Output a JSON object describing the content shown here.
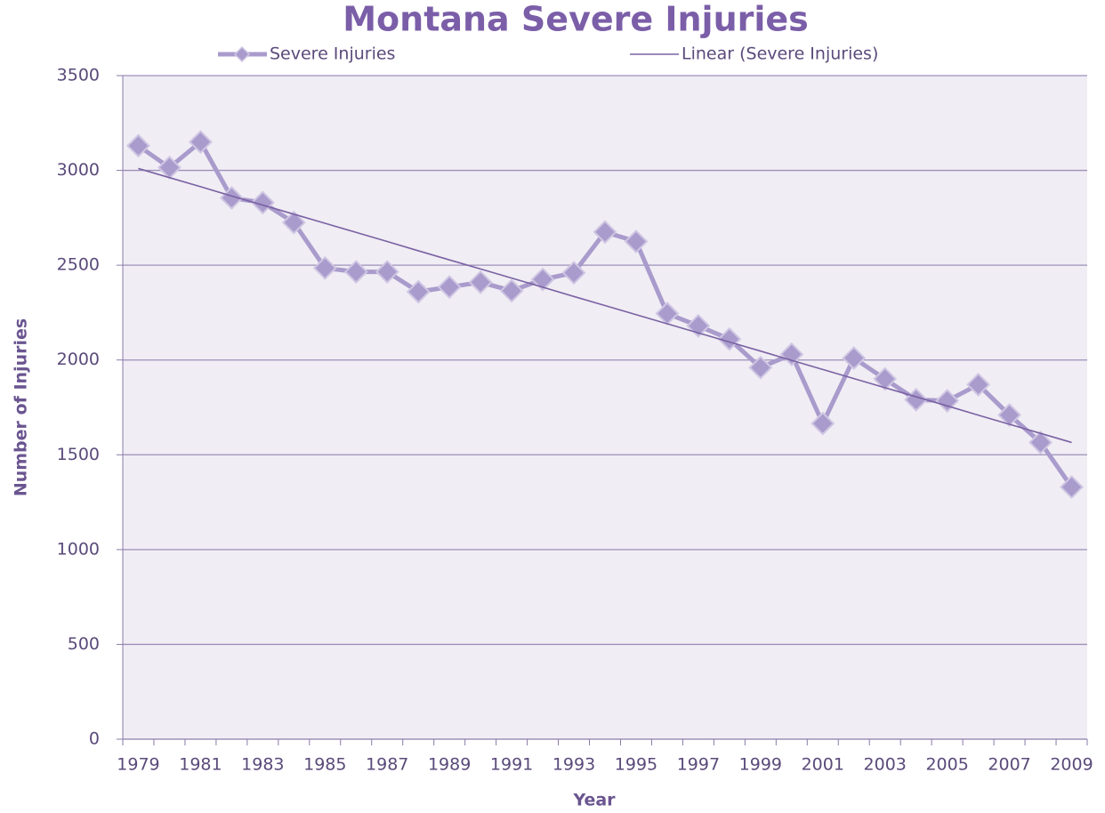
{
  "chart_data": {
    "type": "line",
    "title": "Montana Severe Injuries",
    "x_label": "Year",
    "y_label": "Number of Injuries",
    "categories": [
      "1979",
      null,
      "1981",
      null,
      "1983",
      null,
      "1985",
      null,
      "1987",
      null,
      "1989",
      null,
      "1991",
      null,
      "1993",
      null,
      "1995",
      null,
      "1997",
      null,
      "1999",
      null,
      "2001",
      null,
      "2003",
      null,
      "2005",
      null,
      "2007",
      null,
      "2009"
    ],
    "series": [
      {
        "name": "Severe Injuries",
        "color": "#a99bcc",
        "marker": "diamond",
        "values": [
          3130,
          3015,
          3150,
          2855,
          2830,
          2725,
          2485,
          2465,
          2465,
          2360,
          2385,
          2410,
          2365,
          2425,
          2460,
          2675,
          2625,
          2245,
          2180,
          2110,
          1960,
          2030,
          1665,
          2010,
          1900,
          1790,
          1785,
          1870,
          1710,
          1565,
          1330
        ]
      },
      {
        "name": "Linear (Severe Injuries)",
        "color": "#7a62a3",
        "values": [
          3010,
          2962,
          2914,
          2865,
          2817,
          2769,
          2721,
          2673,
          2625,
          2576,
          2528,
          2480,
          2432,
          2384,
          2335,
          2287,
          2239,
          2191,
          2143,
          2095,
          2047,
          1998,
          1950,
          1902,
          1854,
          1806,
          1758,
          1709,
          1661,
          1613,
          1565
        ]
      }
    ],
    "ylim": [
      0,
      3500
    ],
    "yticks": [
      0,
      500,
      1000,
      1500,
      2000,
      2500,
      3000,
      3500
    ],
    "grid": true,
    "legend": "top"
  }
}
